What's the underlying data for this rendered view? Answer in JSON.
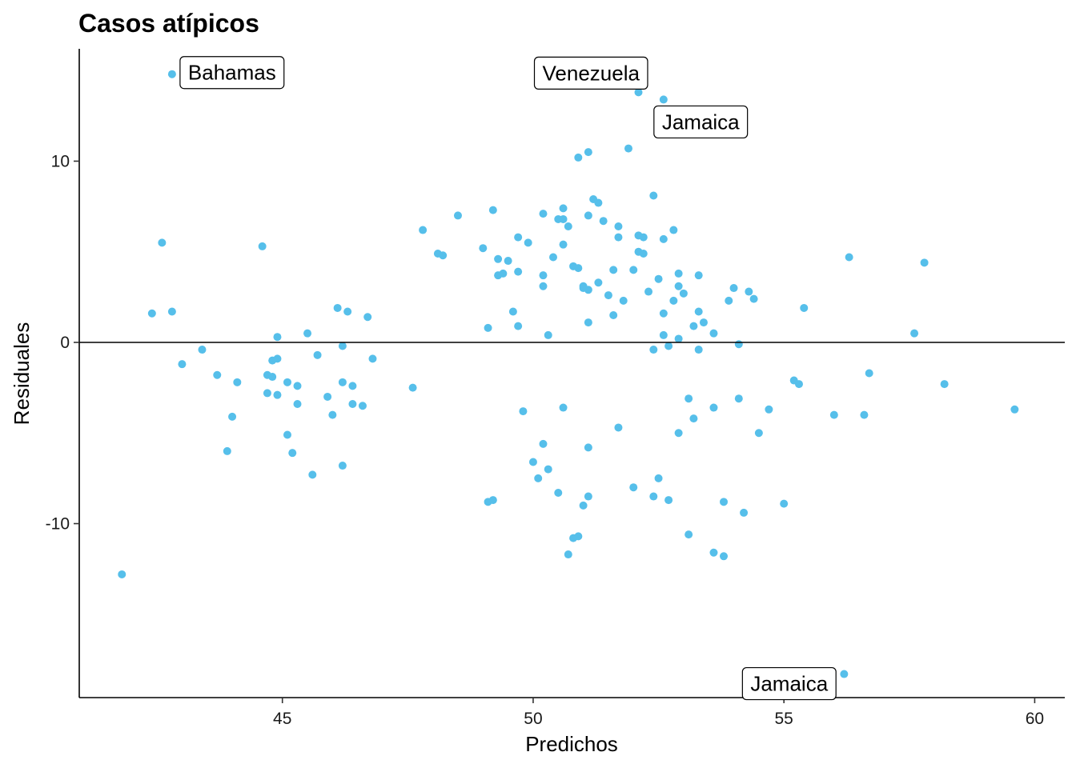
{
  "chart_data": {
    "type": "scatter",
    "title": "Casos atípicos",
    "xlabel": "Predichos",
    "ylabel": "Residuales",
    "xlim": [
      40.95,
      60.6
    ],
    "ylim": [
      -19.6,
      16.2
    ],
    "xticks": [
      45,
      50,
      55,
      60
    ],
    "yticks": [
      -10,
      0,
      10
    ],
    "hline": 0,
    "grid": false,
    "point_color": "#56bfea",
    "points": [
      [
        42.8,
        14.8
      ],
      [
        41.8,
        -12.8
      ],
      [
        42.6,
        5.5
      ],
      [
        42.4,
        1.6
      ],
      [
        42.8,
        1.7
      ],
      [
        43.0,
        -1.2
      ],
      [
        43.4,
        -0.4
      ],
      [
        43.7,
        -1.8
      ],
      [
        43.9,
        -6.0
      ],
      [
        44.0,
        -4.1
      ],
      [
        44.1,
        -2.2
      ],
      [
        44.6,
        5.3
      ],
      [
        44.7,
        -1.8
      ],
      [
        44.7,
        -2.8
      ],
      [
        44.8,
        -1.9
      ],
      [
        44.8,
        -1.0
      ],
      [
        44.9,
        -0.9
      ],
      [
        44.9,
        -2.9
      ],
      [
        44.9,
        0.3
      ],
      [
        45.1,
        -5.1
      ],
      [
        45.1,
        -2.2
      ],
      [
        45.2,
        -6.1
      ],
      [
        45.3,
        -2.4
      ],
      [
        45.3,
        -3.4
      ],
      [
        45.5,
        0.5
      ],
      [
        45.6,
        -7.3
      ],
      [
        45.7,
        -0.7
      ],
      [
        45.9,
        -3.0
      ],
      [
        46.0,
        -4.0
      ],
      [
        46.1,
        1.9
      ],
      [
        46.2,
        -0.2
      ],
      [
        46.2,
        -2.2
      ],
      [
        46.2,
        -6.8
      ],
      [
        46.3,
        1.7
      ],
      [
        46.4,
        -2.4
      ],
      [
        46.4,
        -3.4
      ],
      [
        46.6,
        -3.5
      ],
      [
        46.7,
        1.4
      ],
      [
        46.8,
        -0.9
      ],
      [
        47.6,
        -2.5
      ],
      [
        47.8,
        6.2
      ],
      [
        48.1,
        4.9
      ],
      [
        48.2,
        4.8
      ],
      [
        48.5,
        7.0
      ],
      [
        49.0,
        5.2
      ],
      [
        49.1,
        -8.8
      ],
      [
        49.1,
        0.8
      ],
      [
        49.2,
        -8.7
      ],
      [
        49.2,
        7.3
      ],
      [
        49.3,
        4.6
      ],
      [
        49.3,
        3.7
      ],
      [
        49.4,
        3.8
      ],
      [
        49.5,
        4.5
      ],
      [
        49.6,
        1.7
      ],
      [
        49.7,
        3.9
      ],
      [
        49.7,
        0.9
      ],
      [
        49.7,
        5.8
      ],
      [
        49.8,
        -3.8
      ],
      [
        49.9,
        5.5
      ],
      [
        50.0,
        -6.6
      ],
      [
        50.1,
        -7.5
      ],
      [
        50.2,
        7.1
      ],
      [
        50.2,
        3.1
      ],
      [
        50.2,
        3.7
      ],
      [
        50.2,
        -5.6
      ],
      [
        50.3,
        -7.0
      ],
      [
        50.3,
        0.4
      ],
      [
        50.4,
        4.7
      ],
      [
        50.5,
        6.8
      ],
      [
        50.5,
        -8.3
      ],
      [
        50.6,
        6.8
      ],
      [
        50.6,
        7.4
      ],
      [
        50.6,
        -3.6
      ],
      [
        50.6,
        5.4
      ],
      [
        50.7,
        6.4
      ],
      [
        50.7,
        -11.7
      ],
      [
        50.8,
        4.2
      ],
      [
        50.8,
        -10.8
      ],
      [
        50.9,
        -10.7
      ],
      [
        50.9,
        10.2
      ],
      [
        50.9,
        4.1
      ],
      [
        51.0,
        3.1
      ],
      [
        51.0,
        3.0
      ],
      [
        51.0,
        -9.0
      ],
      [
        51.1,
        7.0
      ],
      [
        51.1,
        -8.5
      ],
      [
        51.1,
        -5.8
      ],
      [
        51.1,
        1.1
      ],
      [
        51.1,
        10.5
      ],
      [
        51.1,
        2.9
      ],
      [
        51.2,
        7.9
      ],
      [
        51.3,
        3.3
      ],
      [
        51.3,
        7.7
      ],
      [
        51.4,
        6.7
      ],
      [
        51.5,
        2.6
      ],
      [
        51.6,
        1.5
      ],
      [
        51.6,
        4.0
      ],
      [
        51.7,
        5.8
      ],
      [
        51.7,
        -4.7
      ],
      [
        51.7,
        6.4
      ],
      [
        51.8,
        2.3
      ],
      [
        51.9,
        10.7
      ],
      [
        52.0,
        4.0
      ],
      [
        52.0,
        -8.0
      ],
      [
        52.1,
        13.8
      ],
      [
        52.1,
        5.0
      ],
      [
        52.1,
        5.9
      ],
      [
        52.2,
        5.8
      ],
      [
        52.2,
        4.9
      ],
      [
        52.3,
        2.8
      ],
      [
        52.4,
        8.1
      ],
      [
        52.4,
        -8.5
      ],
      [
        52.4,
        -0.4
      ],
      [
        52.5,
        3.5
      ],
      [
        52.5,
        -7.5
      ],
      [
        52.6,
        0.4
      ],
      [
        52.6,
        1.6
      ],
      [
        52.6,
        13.4
      ],
      [
        52.6,
        5.7
      ],
      [
        52.7,
        -0.2
      ],
      [
        52.7,
        -8.7
      ],
      [
        52.8,
        2.3
      ],
      [
        52.8,
        6.2
      ],
      [
        52.9,
        0.2
      ],
      [
        52.9,
        3.1
      ],
      [
        52.9,
        3.8
      ],
      [
        52.9,
        -5.0
      ],
      [
        53.0,
        2.7
      ],
      [
        53.1,
        -3.1
      ],
      [
        53.1,
        -10.6
      ],
      [
        53.2,
        0.9
      ],
      [
        53.2,
        -4.2
      ],
      [
        53.3,
        1.7
      ],
      [
        53.3,
        3.7
      ],
      [
        53.3,
        -0.4
      ],
      [
        53.4,
        1.1
      ],
      [
        53.6,
        0.5
      ],
      [
        53.6,
        -3.6
      ],
      [
        53.6,
        -11.6
      ],
      [
        53.8,
        -8.8
      ],
      [
        53.8,
        -11.8
      ],
      [
        53.9,
        2.3
      ],
      [
        54.0,
        3.0
      ],
      [
        54.1,
        -0.1
      ],
      [
        54.1,
        -3.1
      ],
      [
        54.2,
        -9.4
      ],
      [
        54.3,
        2.8
      ],
      [
        54.4,
        2.4
      ],
      [
        54.5,
        -5.0
      ],
      [
        54.7,
        -3.7
      ],
      [
        55.0,
        -8.9
      ],
      [
        55.2,
        -2.1
      ],
      [
        55.3,
        -2.3
      ],
      [
        55.4,
        1.9
      ],
      [
        56.0,
        -4.0
      ],
      [
        56.2,
        -18.3
      ],
      [
        56.3,
        4.7
      ],
      [
        56.6,
        -4.0
      ],
      [
        56.7,
        -1.7
      ],
      [
        57.6,
        0.5
      ],
      [
        57.8,
        4.4
      ],
      [
        58.2,
        -2.3
      ],
      [
        59.6,
        -3.7
      ]
    ],
    "annotations": [
      {
        "label": "Bahamas",
        "x": 42.8,
        "y": 14.8
      },
      {
        "label": "Venezuela",
        "x": 52.1,
        "y": 13.8
      },
      {
        "label": "Jamaica",
        "x": 52.6,
        "y": 13.4
      },
      {
        "label": "Jamaica",
        "x": 56.2,
        "y": -18.3
      }
    ]
  }
}
